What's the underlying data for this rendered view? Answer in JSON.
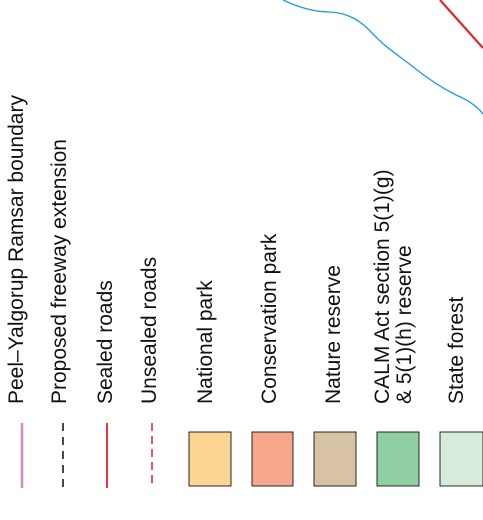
{
  "legend": {
    "items": [
      {
        "id": "ramsar-boundary",
        "label": "Peel–Yalgorup Ramsar boundary",
        "symbol": "solid-line",
        "color": "#c98ec7"
      },
      {
        "id": "proposed-freeway",
        "label": "Proposed freeway extension",
        "symbol": "dashed-line",
        "color": "#1a1a1a"
      },
      {
        "id": "sealed-roads",
        "label": "Sealed roads",
        "symbol": "solid-line",
        "color": "#e0242b"
      },
      {
        "id": "unsealed-roads",
        "label": "Unsealed roads",
        "symbol": "dashed-line",
        "color": "#e0242b"
      },
      {
        "id": "national-park",
        "label": "National park",
        "symbol": "fill",
        "color": "#fdd592"
      },
      {
        "id": "conservation-park",
        "label": "Conservation park",
        "symbol": "fill",
        "color": "#f6a78b"
      },
      {
        "id": "nature-reserve",
        "label": "Nature reserve",
        "symbol": "fill",
        "color": "#d9c3a6"
      },
      {
        "id": "calm-act-reserve",
        "label_line1": "CALM Act section 5(1)(g)",
        "label_line2": "& 5(1)(h) reserve",
        "symbol": "fill",
        "color": "#8fcfa1"
      },
      {
        "id": "state-forest",
        "label": "State forest",
        "symbol": "fill",
        "color": "#d7ebdb"
      }
    ]
  },
  "map_features": {
    "river_color": "#1e9be0",
    "road_color": "#e0242b"
  }
}
